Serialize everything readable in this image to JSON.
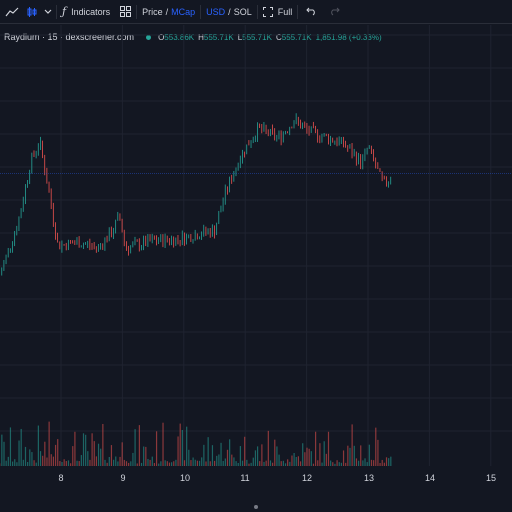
{
  "toolbar": {
    "indicators_label": "Indicators",
    "price_label": "Price",
    "slash": "/",
    "mcap_label": "MCap",
    "usd_label": "USD",
    "sol_label": "SOL",
    "full_label": "Full"
  },
  "legend": {
    "symbol": "Raydium · 15 · dexscreener.com",
    "open_key": "O",
    "open_val": "553.86K",
    "high_key": "H",
    "high_val": "555.71K",
    "low_key": "L",
    "low_val": "555.71K",
    "close_key": "C",
    "close_val": "555.71K",
    "change": "1,851.98 (+0.33%)"
  },
  "xaxis": {
    "labels": [
      "8",
      "9",
      "10",
      "11",
      "12",
      "13",
      "14",
      "15"
    ]
  },
  "colors": {
    "up": "#26a69a",
    "down": "#ef5350",
    "bg": "#131722",
    "grid": "#1f2330",
    "accent": "#2962ff"
  },
  "chart_data": {
    "type": "line",
    "x_ticks": [
      "8",
      "9",
      "10",
      "11",
      "12",
      "13",
      "14",
      "15"
    ],
    "x": [
      7.0,
      7.3,
      7.5,
      7.65,
      7.75,
      7.95,
      8.3,
      8.6,
      8.85,
      8.95,
      9.05,
      9.5,
      9.9,
      10.25,
      10.5,
      10.65,
      10.9,
      11.2,
      11.55,
      11.8,
      12.0,
      12.35,
      12.6,
      12.9,
      13.0,
      13.25,
      13.4
    ],
    "price_index": [
      0.1,
      0.45,
      0.85,
      1.0,
      0.78,
      0.3,
      0.32,
      0.28,
      0.4,
      0.5,
      0.28,
      0.33,
      0.34,
      0.38,
      0.4,
      0.62,
      0.88,
      1.08,
      1.02,
      1.14,
      1.07,
      1.02,
      0.98,
      0.85,
      0.96,
      0.7,
      0.78
    ]
  }
}
